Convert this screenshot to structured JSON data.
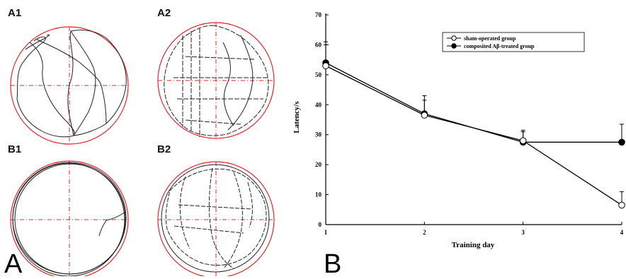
{
  "panel_labels": {
    "left": "A",
    "right": "B"
  },
  "track_labels": [
    "A1",
    "A2",
    "B1",
    "B2"
  ],
  "chart_data": {
    "type": "line",
    "x": [
      1,
      2,
      3,
      4
    ],
    "xlabel": "Training day",
    "ylabel": "Latency/s",
    "ylim": [
      0,
      70
    ],
    "yticks": [
      0,
      10,
      20,
      30,
      40,
      50,
      60,
      70
    ],
    "xticks": [
      1,
      2,
      3,
      4
    ],
    "legend_position": "top-right",
    "series": [
      {
        "name": "sham-operated group",
        "marker": "open-circle",
        "values": [
          53,
          36.5,
          28,
          6.5
        ],
        "errors": [
          8,
          5,
          3,
          4.5
        ]
      },
      {
        "name": "composited Aβ-treated group",
        "marker": "filled-circle",
        "values": [
          54,
          37,
          27.5,
          27.5
        ],
        "errors": [
          6,
          6,
          4,
          6
        ]
      }
    ]
  }
}
